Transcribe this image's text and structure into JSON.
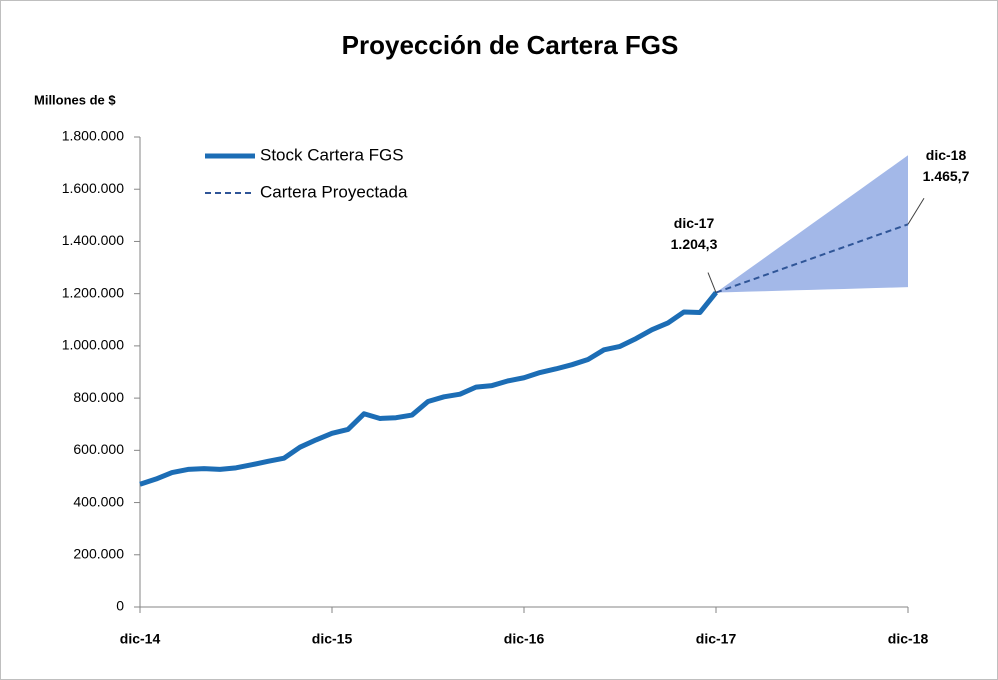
{
  "chart_data": {
    "type": "line",
    "title": "Proyección de Cartera FGS",
    "y_label": "Millones de $",
    "categories": [
      "dic-14",
      null,
      null,
      null,
      null,
      null,
      null,
      null,
      null,
      null,
      null,
      null,
      "dic-15",
      null,
      null,
      null,
      null,
      null,
      null,
      null,
      null,
      null,
      null,
      null,
      "dic-16",
      null,
      null,
      null,
      null,
      null,
      null,
      null,
      null,
      null,
      null,
      null,
      "dic-17",
      null,
      null,
      null,
      null,
      null,
      null,
      null,
      null,
      null,
      null,
      null,
      "dic-18"
    ],
    "ylim": [
      0,
      1800000
    ],
    "yticks": [
      0,
      {
        "value": 200000,
        "label": "200.000"
      },
      {
        "value": 400000,
        "label": "400.000"
      },
      {
        "value": 600000,
        "label": "600.000"
      },
      {
        "value": 800000,
        "label": "800.000"
      },
      {
        "value": 1000000,
        "label": "1.000.000"
      },
      {
        "value": 1200000,
        "label": "1.200.000"
      },
      {
        "value": 1400000,
        "label": "1.400.000"
      },
      {
        "value": 1600000,
        "label": "1.600.000"
      },
      {
        "value": 1800000,
        "label": "1.800.000"
      }
    ],
    "legend": "upper left",
    "series": [
      {
        "name": "Stock Cartera FGS",
        "color": "#1c6db5",
        "style": "solid",
        "values": [
          470000,
          490000,
          515000,
          527000,
          530000,
          527000,
          533000,
          545000,
          558000,
          570000,
          612000,
          640000,
          665000,
          680000,
          740000,
          722000,
          725000,
          735000,
          787000,
          805000,
          815000,
          842000,
          848000,
          866000,
          878000,
          898000,
          912000,
          928000,
          948000,
          985000,
          998000,
          1028000,
          1062000,
          1088000,
          1130000,
          1128000,
          1204300,
          null,
          null,
          null,
          null,
          null,
          null,
          null,
          null,
          null,
          null,
          null,
          null
        ]
      },
      {
        "name": "Cartera Proyectada",
        "color": "#2f5597",
        "style": "dashed",
        "values": [
          null,
          null,
          null,
          null,
          null,
          null,
          null,
          null,
          null,
          null,
          null,
          null,
          null,
          null,
          null,
          null,
          null,
          null,
          null,
          null,
          null,
          null,
          null,
          null,
          null,
          null,
          null,
          null,
          null,
          null,
          null,
          null,
          null,
          null,
          null,
          null,
          1204300,
          1226083,
          1247867,
          1269650,
          1291433,
          1313217,
          1335000,
          1356783,
          1378567,
          1400350,
          1422133,
          1443917,
          1465700
        ]
      }
    ],
    "band": {
      "color": "#a3b8e8",
      "upper": [
        1204300,
        1248108,
        1291917,
        1335725,
        1379533,
        1423342,
        1467150,
        1510958,
        1554767,
        1598575,
        1642383,
        1686192,
        1730000
      ],
      "lower": [
        1204300,
        1206025,
        1207750,
        1209475,
        1211200,
        1212925,
        1214650,
        1216375,
        1218100,
        1219825,
        1221550,
        1223275,
        1225000
      ]
    },
    "annotations": [
      {
        "x": "dic-17",
        "y": 1204300,
        "y_label": "1.204,3"
      },
      {
        "x": "dic-18",
        "y": 1465700,
        "y_label": "1.465,7"
      }
    ]
  }
}
